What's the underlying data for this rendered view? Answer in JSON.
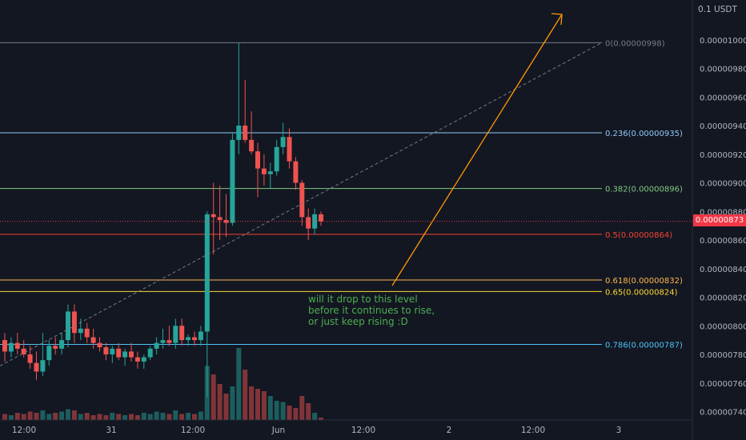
{
  "header": {
    "unit_label": "0.1 USDT"
  },
  "price_scale": {
    "ticks": [
      "0.00001000",
      "0.00000980",
      "0.00000960",
      "0.00000940",
      "0.00000920",
      "0.00000900",
      "0.00000880",
      "0.00000860",
      "0.00000840",
      "0.00000820",
      "0.00000800",
      "0.00000780",
      "0.00000760",
      "0.00000740"
    ],
    "last_price": "0.00000873",
    "last_price_color": "#f23645"
  },
  "time_axis": {
    "labels": [
      "12:00",
      "31",
      "12:00",
      "Jun",
      "12:00",
      "2",
      "12:00",
      "3"
    ]
  },
  "fib_levels": [
    {
      "label": "0(0.00000998)",
      "price": 9.98e-06,
      "color": "#787b86"
    },
    {
      "label": "0.236(0.00000935)",
      "price": 9.35e-06,
      "color": "#90caf9"
    },
    {
      "label": "0.382(0.00000896)",
      "price": 8.96e-06,
      "color": "#81c784"
    },
    {
      "label": "0.5(0.00000864)",
      "price": 8.64e-06,
      "color": "#f44336"
    },
    {
      "label": "0.618(0.00000832)",
      "price": 8.32e-06,
      "color": "#ffb74d"
    },
    {
      "label": "0.65(0.00000824)",
      "price": 8.24e-06,
      "color": "#fdd835"
    },
    {
      "label": "0.786(0.00000787)",
      "price": 7.87e-06,
      "color": "#4fc3f7"
    }
  ],
  "annotation": {
    "text": "will it drop to this level\nbefore it continues to rise,\nor just keep rising :D",
    "color": "#4caf50"
  },
  "colors": {
    "up": "#26a69a",
    "down": "#ef5350",
    "background": "#131722"
  },
  "chart_data": {
    "type": "candlestick",
    "candles": [
      {
        "o": 7.9,
        "h": 7.95,
        "l": 7.75,
        "c": 7.82
      },
      {
        "o": 7.82,
        "h": 7.92,
        "l": 7.78,
        "c": 7.88
      },
      {
        "o": 7.88,
        "h": 7.95,
        "l": 7.8,
        "c": 7.84
      },
      {
        "o": 7.84,
        "h": 7.9,
        "l": 7.78,
        "c": 7.8
      },
      {
        "o": 7.8,
        "h": 7.86,
        "l": 7.7,
        "c": 7.74
      },
      {
        "o": 7.74,
        "h": 7.82,
        "l": 7.62,
        "c": 7.68
      },
      {
        "o": 7.68,
        "h": 7.95,
        "l": 7.65,
        "c": 7.76
      },
      {
        "o": 7.76,
        "h": 7.9,
        "l": 7.72,
        "c": 7.86
      },
      {
        "o": 7.86,
        "h": 7.92,
        "l": 7.8,
        "c": 7.84
      },
      {
        "o": 7.84,
        "h": 7.95,
        "l": 7.8,
        "c": 7.9
      },
      {
        "o": 7.9,
        "h": 8.15,
        "l": 7.85,
        "c": 8.1
      },
      {
        "o": 8.1,
        "h": 8.15,
        "l": 7.88,
        "c": 7.95
      },
      {
        "o": 7.95,
        "h": 8.05,
        "l": 7.9,
        "c": 7.98
      },
      {
        "o": 7.98,
        "h": 8.02,
        "l": 7.88,
        "c": 7.92
      },
      {
        "o": 7.92,
        "h": 7.98,
        "l": 7.84,
        "c": 7.88
      },
      {
        "o": 7.88,
        "h": 7.92,
        "l": 7.82,
        "c": 7.85
      },
      {
        "o": 7.85,
        "h": 7.88,
        "l": 7.76,
        "c": 7.8
      },
      {
        "o": 7.8,
        "h": 7.86,
        "l": 7.74,
        "c": 7.84
      },
      {
        "o": 7.84,
        "h": 7.88,
        "l": 7.76,
        "c": 7.78
      },
      {
        "o": 7.78,
        "h": 7.84,
        "l": 7.72,
        "c": 7.82
      },
      {
        "o": 7.82,
        "h": 7.88,
        "l": 7.75,
        "c": 7.78
      },
      {
        "o": 7.78,
        "h": 7.82,
        "l": 7.7,
        "c": 7.75
      },
      {
        "o": 7.75,
        "h": 7.8,
        "l": 7.7,
        "c": 7.78
      },
      {
        "o": 7.78,
        "h": 7.86,
        "l": 7.76,
        "c": 7.84
      },
      {
        "o": 7.84,
        "h": 7.92,
        "l": 7.8,
        "c": 7.88
      },
      {
        "o": 7.88,
        "h": 7.98,
        "l": 7.84,
        "c": 7.9
      },
      {
        "o": 7.9,
        "h": 8.0,
        "l": 7.86,
        "c": 7.88
      },
      {
        "o": 7.88,
        "h": 8.05,
        "l": 7.84,
        "c": 8.0
      },
      {
        "o": 8.0,
        "h": 8.05,
        "l": 7.86,
        "c": 7.9
      },
      {
        "o": 7.9,
        "h": 7.94,
        "l": 7.86,
        "c": 7.92
      },
      {
        "o": 7.92,
        "h": 7.96,
        "l": 7.86,
        "c": 7.9
      },
      {
        "o": 7.9,
        "h": 8.0,
        "l": 7.86,
        "c": 7.96
      },
      {
        "o": 7.96,
        "h": 8.8,
        "l": 7.5,
        "c": 8.78
      },
      {
        "o": 8.78,
        "h": 9.0,
        "l": 8.5,
        "c": 8.76
      },
      {
        "o": 8.76,
        "h": 8.98,
        "l": 8.6,
        "c": 8.74
      },
      {
        "o": 8.74,
        "h": 8.92,
        "l": 8.62,
        "c": 8.72
      },
      {
        "o": 8.72,
        "h": 9.35,
        "l": 8.7,
        "c": 9.3
      },
      {
        "o": 9.3,
        "h": 9.98,
        "l": 9.2,
        "c": 9.4
      },
      {
        "o": 9.4,
        "h": 9.72,
        "l": 9.28,
        "c": 9.3
      },
      {
        "o": 9.3,
        "h": 9.5,
        "l": 9.2,
        "c": 9.22
      },
      {
        "o": 9.22,
        "h": 9.28,
        "l": 8.9,
        "c": 9.1
      },
      {
        "o": 9.1,
        "h": 9.2,
        "l": 8.98,
        "c": 9.06
      },
      {
        "o": 9.06,
        "h": 9.14,
        "l": 8.96,
        "c": 9.08
      },
      {
        "o": 9.08,
        "h": 9.3,
        "l": 9.05,
        "c": 9.25
      },
      {
        "o": 9.25,
        "h": 9.42,
        "l": 9.2,
        "c": 9.32
      },
      {
        "o": 9.32,
        "h": 9.38,
        "l": 9.1,
        "c": 9.15
      },
      {
        "o": 9.15,
        "h": 9.18,
        "l": 8.95,
        "c": 9.0
      },
      {
        "o": 9.0,
        "h": 9.02,
        "l": 8.7,
        "c": 8.76
      },
      {
        "o": 8.76,
        "h": 8.82,
        "l": 8.6,
        "c": 8.68
      },
      {
        "o": 8.68,
        "h": 8.82,
        "l": 8.64,
        "c": 8.78
      },
      {
        "o": 8.78,
        "h": 8.8,
        "l": 8.7,
        "c": 8.73
      }
    ],
    "volumes": [
      5,
      4,
      6,
      5,
      7,
      6,
      8,
      5,
      6,
      7,
      9,
      8,
      5,
      6,
      4,
      5,
      4,
      6,
      5,
      4,
      5,
      4,
      6,
      5,
      7,
      6,
      5,
      8,
      5,
      6,
      5,
      7,
      45,
      38,
      30,
      22,
      28,
      60,
      42,
      28,
      26,
      24,
      20,
      16,
      15,
      12,
      10,
      20,
      14,
      6,
      2
    ],
    "price_unit": "1e-6 USDT (values ×0.000001)"
  }
}
